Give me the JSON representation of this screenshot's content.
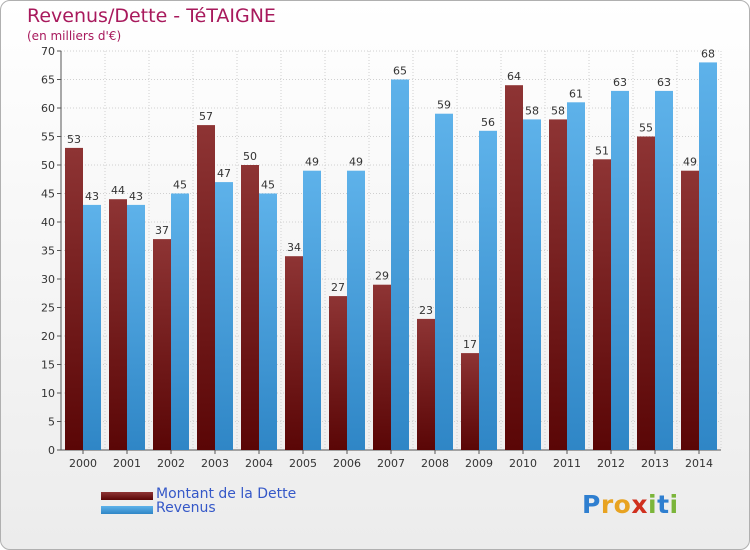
{
  "chart_data": {
    "type": "bar",
    "title": "Revenus/Dette - TéTAIGNE",
    "subtitle": "(en milliers d'€)",
    "xlabel": "",
    "ylabel": "",
    "ylim": [
      0,
      70
    ],
    "yticks": [
      "0",
      "5",
      "10",
      "15",
      "20",
      "25",
      "30",
      "35",
      "40",
      "45",
      "50",
      "55",
      "60",
      "65",
      "70"
    ],
    "grid": true,
    "categories": [
      "2000",
      "2001",
      "2002",
      "2003",
      "2004",
      "2005",
      "2006",
      "2007",
      "2008",
      "2009",
      "2010",
      "2011",
      "2012",
      "2013",
      "2014"
    ],
    "series": [
      {
        "name": "Montant de la Dette",
        "color": "#7a2020",
        "values": [
          53,
          44,
          37,
          57,
          50,
          34,
          27,
          29,
          23,
          17,
          64,
          58,
          51,
          55,
          49
        ]
      },
      {
        "name": "Revenus",
        "color": "#4ea6e2",
        "values": [
          43,
          43,
          45,
          47,
          45,
          49,
          49,
          65,
          59,
          56,
          58,
          61,
          63,
          63,
          68
        ]
      }
    ],
    "legend": [
      "Montant de la Dette",
      "Revenus"
    ]
  },
  "logo": {
    "letters": [
      "P",
      "r",
      "o",
      "x",
      "i",
      "t",
      "i"
    ]
  }
}
